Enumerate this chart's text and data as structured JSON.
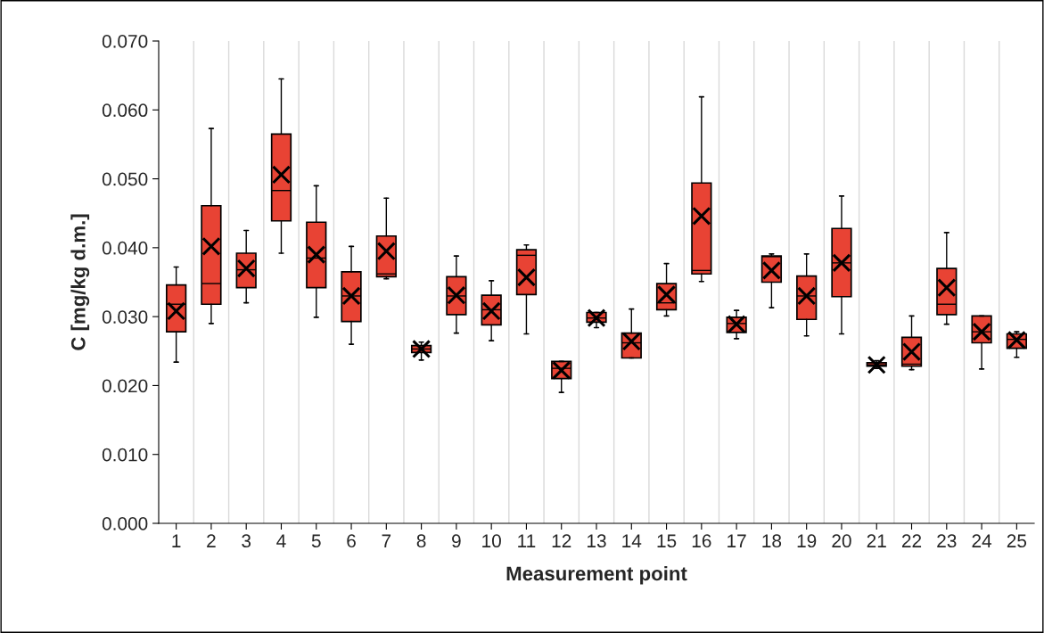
{
  "chart_data": {
    "type": "box",
    "xlabel": "Measurement point",
    "ylabel": "C [mg/kg d.m.]",
    "categories": [
      "1",
      "2",
      "3",
      "4",
      "5",
      "6",
      "7",
      "8",
      "9",
      "10",
      "11",
      "12",
      "13",
      "14",
      "15",
      "16",
      "17",
      "18",
      "19",
      "20",
      "21",
      "22",
      "23",
      "24",
      "25"
    ],
    "color": "#e84334",
    "boxes": [
      {
        "low": 0.0234,
        "q1": 0.0278,
        "median": 0.0318,
        "q3": 0.0346,
        "high": 0.0372,
        "mean": 0.0308
      },
      {
        "low": 0.029,
        "q1": 0.0318,
        "median": 0.0348,
        "q3": 0.0461,
        "high": 0.0573,
        "mean": 0.0402
      },
      {
        "low": 0.032,
        "q1": 0.0342,
        "median": 0.0368,
        "q3": 0.0392,
        "high": 0.0425,
        "mean": 0.037
      },
      {
        "low": 0.0392,
        "q1": 0.0439,
        "median": 0.0483,
        "q3": 0.0565,
        "high": 0.0645,
        "mean": 0.0506
      },
      {
        "low": 0.0299,
        "q1": 0.0342,
        "median": 0.0385,
        "q3": 0.0437,
        "high": 0.049,
        "mean": 0.039
      },
      {
        "low": 0.026,
        "q1": 0.0293,
        "median": 0.033,
        "q3": 0.0365,
        "high": 0.0402,
        "mean": 0.033
      },
      {
        "low": 0.0355,
        "q1": 0.0358,
        "median": 0.0362,
        "q3": 0.0417,
        "high": 0.0472,
        "mean": 0.0395
      },
      {
        "low": 0.0237,
        "q1": 0.0248,
        "median": 0.0253,
        "q3": 0.0258,
        "high": 0.0263,
        "mean": 0.0253
      },
      {
        "low": 0.0276,
        "q1": 0.0303,
        "median": 0.033,
        "q3": 0.0358,
        "high": 0.0388,
        "mean": 0.0331
      },
      {
        "low": 0.0265,
        "q1": 0.0288,
        "median": 0.031,
        "q3": 0.0331,
        "high": 0.0352,
        "mean": 0.0308
      },
      {
        "low": 0.0275,
        "q1": 0.0332,
        "median": 0.0389,
        "q3": 0.0397,
        "high": 0.0404,
        "mean": 0.0357
      },
      {
        "low": 0.019,
        "q1": 0.021,
        "median": 0.0225,
        "q3": 0.0235,
        "high": 0.0235,
        "mean": 0.0222
      },
      {
        "low": 0.0284,
        "q1": 0.0292,
        "median": 0.0298,
        "q3": 0.0306,
        "high": 0.0306,
        "mean": 0.0298
      },
      {
        "low": 0.024,
        "q1": 0.024,
        "median": 0.0262,
        "q3": 0.0276,
        "high": 0.0311,
        "mean": 0.0264
      },
      {
        "low": 0.0301,
        "q1": 0.031,
        "median": 0.032,
        "q3": 0.0348,
        "high": 0.0377,
        "mean": 0.0332
      },
      {
        "low": 0.0351,
        "q1": 0.0362,
        "median": 0.0367,
        "q3": 0.0494,
        "high": 0.0619,
        "mean": 0.0446
      },
      {
        "low": 0.0268,
        "q1": 0.0277,
        "median": 0.029,
        "q3": 0.0299,
        "high": 0.0309,
        "mean": 0.0289
      },
      {
        "low": 0.0313,
        "q1": 0.035,
        "median": 0.0387,
        "q3": 0.0388,
        "high": 0.0391,
        "mean": 0.0367
      },
      {
        "low": 0.0272,
        "q1": 0.0296,
        "median": 0.033,
        "q3": 0.0359,
        "high": 0.0391,
        "mean": 0.033
      },
      {
        "low": 0.0275,
        "q1": 0.0329,
        "median": 0.0378,
        "q3": 0.0428,
        "high": 0.0475,
        "mean": 0.0378
      },
      {
        "low": 0.0225,
        "q1": 0.0228,
        "median": 0.023,
        "q3": 0.0233,
        "high": 0.0236,
        "mean": 0.023
      },
      {
        "low": 0.0223,
        "q1": 0.0228,
        "median": 0.0231,
        "q3": 0.027,
        "high": 0.0301,
        "mean": 0.0249
      },
      {
        "low": 0.0289,
        "q1": 0.0303,
        "median": 0.0318,
        "q3": 0.037,
        "high": 0.0422,
        "mean": 0.0342
      },
      {
        "low": 0.0224,
        "q1": 0.0262,
        "median": 0.0278,
        "q3": 0.0301,
        "high": 0.0301,
        "mean": 0.0278
      },
      {
        "low": 0.0241,
        "q1": 0.0254,
        "median": 0.0267,
        "q3": 0.0275,
        "high": 0.0278,
        "mean": 0.0266
      }
    ],
    "ylim": [
      0,
      0.07
    ],
    "yticks": [
      {
        "value": 0,
        "label": "0.000"
      },
      {
        "value": 0.01,
        "label": "0.010"
      },
      {
        "value": 0.02,
        "label": "0.020"
      },
      {
        "value": 0.03,
        "label": "0.030"
      },
      {
        "value": 0.04,
        "label": "0.040"
      },
      {
        "value": 0.05,
        "label": "0.050"
      },
      {
        "value": 0.06,
        "label": "0.060"
      },
      {
        "value": 0.07,
        "label": "0.070"
      }
    ],
    "grid": "x",
    "marker": "cross"
  }
}
